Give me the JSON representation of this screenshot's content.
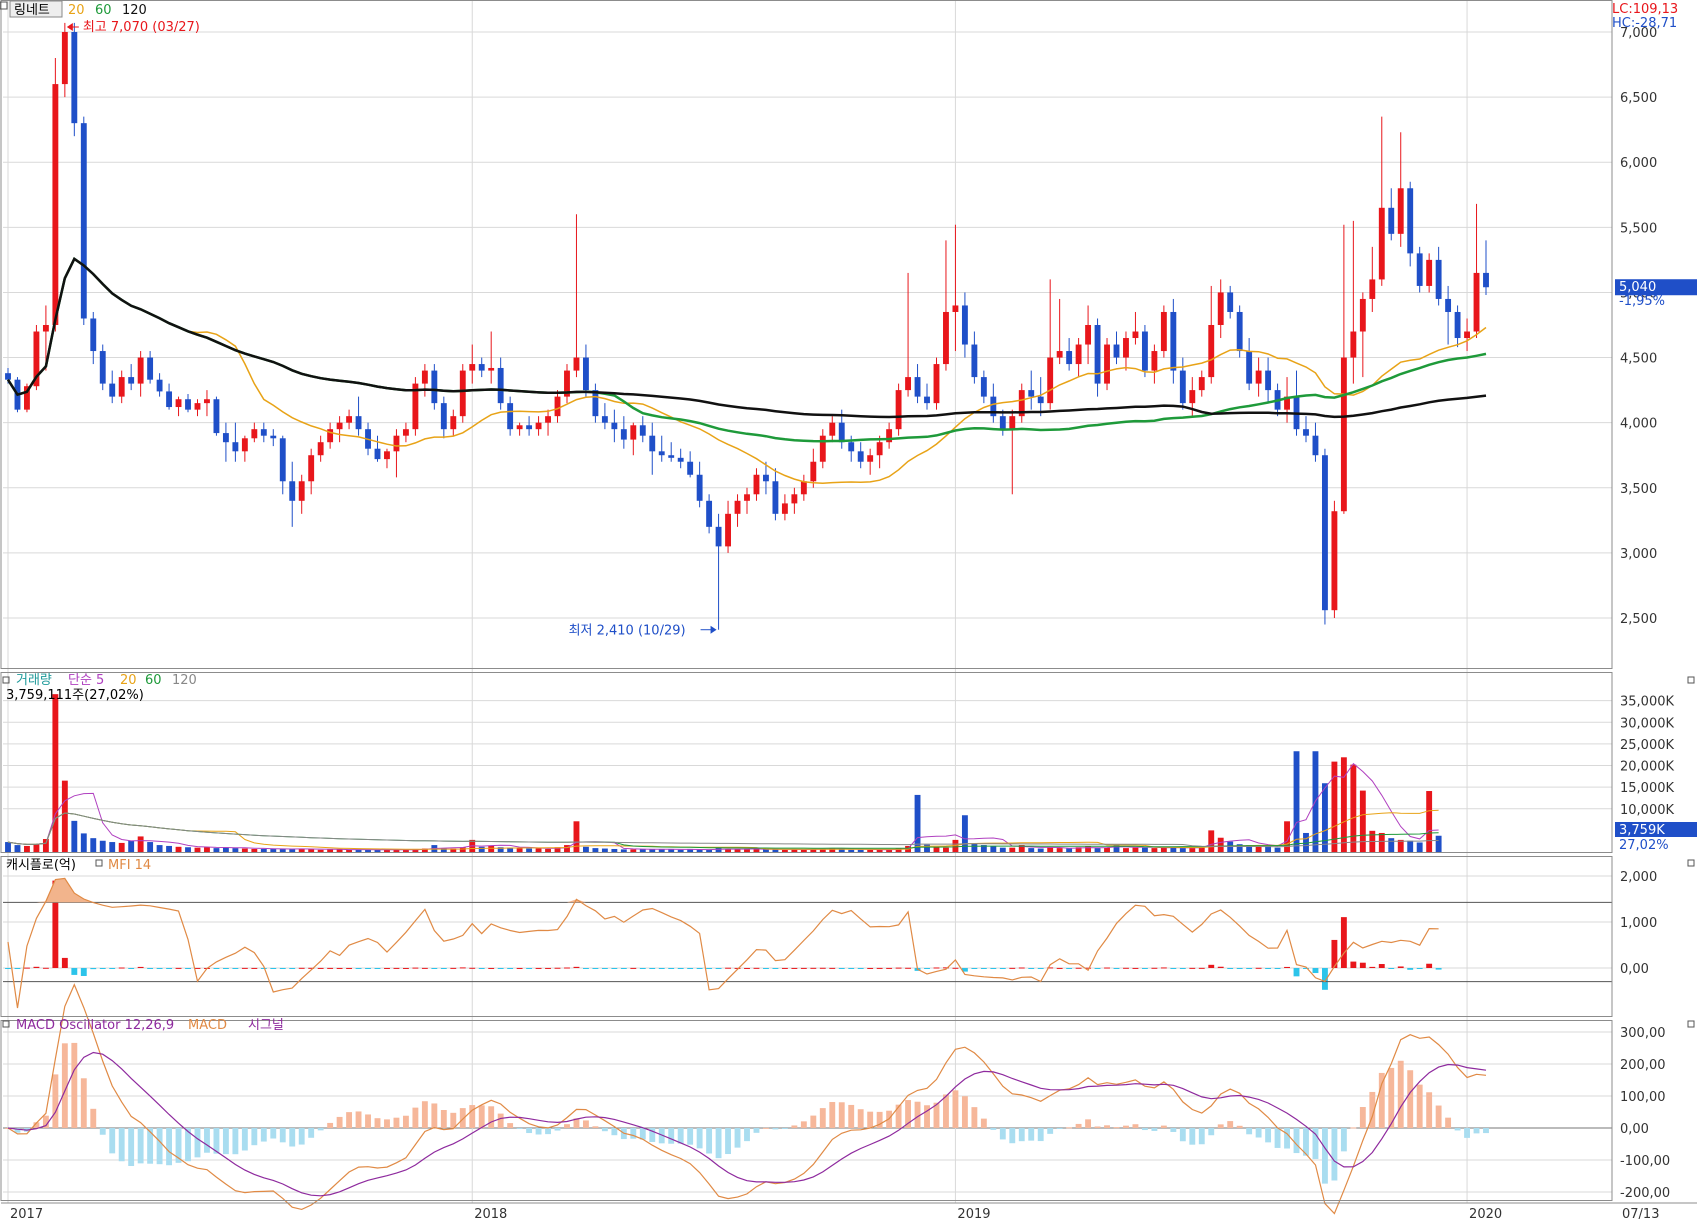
{
  "colors": {
    "up": "#e8161b",
    "down": "#1f4fc8",
    "ma20": "#e8a317",
    "ma60": "#1e9a3a",
    "ma120": "#111111",
    "grid": "#d9d9d9",
    "panelBorder": "#8c8c8c",
    "priceTag": "#1f4fc8",
    "mfi": "#e08a45",
    "mfiFill": "#f2b48c",
    "cashPos": "#e8161b",
    "cashNeg": "#2cc4ea",
    "macdLine": "#e08a45",
    "signalLine": "#8e2a9e",
    "oscPos": "#f6b79a",
    "oscNeg": "#a9ddf0",
    "volMa5": "#b040c0"
  },
  "main": {
    "legend": {
      "name": "링네트",
      "ma1": "20",
      "ma2": "60",
      "ma3": "120"
    },
    "topRight": {
      "lc": "LC:109,13",
      "hc": "HC:-28,71"
    },
    "high": "최고 7,070 (03/27)",
    "low": "최저 2,410 (10/29)",
    "lastPrice": "5,040",
    "lastChange": "-1,95%",
    "yTicks": [
      {
        "v": 2500,
        "label": "2,500"
      },
      {
        "v": 3000,
        "label": "3,000"
      },
      {
        "v": 3500,
        "label": "3,500"
      },
      {
        "v": 4000,
        "label": "4,000"
      },
      {
        "v": 4500,
        "label": "4,500"
      },
      {
        "v": 5000,
        "label": "5,000"
      },
      {
        "v": 5500,
        "label": "5,500"
      },
      {
        "v": 6000,
        "label": "6,000"
      },
      {
        "v": 6500,
        "label": "6,500"
      },
      {
        "v": 7000,
        "label": "7,000"
      }
    ]
  },
  "volume": {
    "legend": {
      "name": "거래량",
      "ma": "단순 5",
      "p2": "20",
      "p3": "60",
      "p4": "120"
    },
    "info": "3,759,111주(27,02%)",
    "tag": "3,759K",
    "tagPct": "27,02%",
    "yTicks": [
      {
        "v": 10000,
        "label": "10,000K"
      },
      {
        "v": 15000,
        "label": "15,000K"
      },
      {
        "v": 20000,
        "label": "20,000K"
      },
      {
        "v": 25000,
        "label": "25,000K"
      },
      {
        "v": 30000,
        "label": "30,000K"
      },
      {
        "v": 35000,
        "label": "35,000K"
      }
    ]
  },
  "cash": {
    "legend": {
      "name": "캐시플로(억)",
      "mfi": "MFI 14"
    },
    "yTicks": [
      {
        "v": 0,
        "label": "0,00"
      },
      {
        "v": 1000,
        "label": "1,000"
      },
      {
        "v": 2000,
        "label": "2,000"
      }
    ]
  },
  "macd": {
    "legend": {
      "name": "MACD Oscillator 12,26,9",
      "macd": "MACD",
      "signal": "시그널"
    },
    "yTicks": [
      {
        "v": -200,
        "label": "-200,00"
      },
      {
        "v": -100,
        "label": "-100,00"
      },
      {
        "v": 0,
        "label": "0,00"
      },
      {
        "v": 100,
        "label": "100,00"
      },
      {
        "v": 200,
        "label": "200,00"
      },
      {
        "v": 300,
        "label": "300,00"
      }
    ]
  },
  "xAxis": {
    "labels": [
      {
        "i": 0,
        "label": "2017"
      },
      {
        "i": 49,
        "label": "2018"
      },
      {
        "i": 100,
        "label": "2019"
      },
      {
        "i": 154,
        "label": "2020"
      }
    ],
    "last": "07/13"
  },
  "chart_data": {
    "type": "candlestick",
    "title": "링네트",
    "period": "weekly",
    "indicators": [
      "MA 20",
      "MA 60",
      "MA 120",
      "Volume",
      "Cash flow",
      "MFI 14",
      "MACD Oscillator 12,26,9"
    ],
    "candles": [
      [
        4380,
        4420,
        4300,
        4330
      ],
      [
        4330,
        4350,
        4080,
        4100
      ],
      [
        4100,
        4300,
        4080,
        4280
      ],
      [
        4280,
        4750,
        4250,
        4700
      ],
      [
        4700,
        4900,
        4400,
        4750
      ],
      [
        4750,
        6800,
        4700,
        6600
      ],
      [
        6600,
        7070,
        6500,
        7000
      ],
      [
        7000,
        7070,
        6200,
        6300
      ],
      [
        6300,
        6350,
        4750,
        4800
      ],
      [
        4800,
        4850,
        4450,
        4550
      ],
      [
        4550,
        4600,
        4250,
        4300
      ],
      [
        4300,
        4400,
        4150,
        4200
      ],
      [
        4200,
        4400,
        4150,
        4350
      ],
      [
        4350,
        4450,
        4250,
        4300
      ],
      [
        4300,
        4550,
        4200,
        4500
      ],
      [
        4500,
        4550,
        4300,
        4330
      ],
      [
        4330,
        4380,
        4200,
        4240
      ],
      [
        4240,
        4300,
        4100,
        4120
      ],
      [
        4120,
        4200,
        4050,
        4180
      ],
      [
        4180,
        4220,
        4080,
        4100
      ],
      [
        4100,
        4180,
        4050,
        4150
      ],
      [
        4150,
        4250,
        4050,
        4180
      ],
      [
        4180,
        4200,
        3900,
        3920
      ],
      [
        3920,
        4000,
        3700,
        3850
      ],
      [
        3850,
        4000,
        3700,
        3780
      ],
      [
        3780,
        3900,
        3700,
        3880
      ],
      [
        3880,
        4000,
        3850,
        3950
      ],
      [
        3950,
        4000,
        3850,
        3900
      ],
      [
        3900,
        3950,
        3820,
        3880
      ],
      [
        3880,
        3900,
        3450,
        3550
      ],
      [
        3550,
        3700,
        3200,
        3400
      ],
      [
        3400,
        3600,
        3300,
        3550
      ],
      [
        3550,
        3800,
        3450,
        3750
      ],
      [
        3750,
        3900,
        3700,
        3850
      ],
      [
        3850,
        4000,
        3800,
        3950
      ],
      [
        3950,
        4050,
        3850,
        4000
      ],
      [
        4000,
        4100,
        3950,
        4050
      ],
      [
        4050,
        4200,
        3900,
        3950
      ],
      [
        3950,
        4000,
        3750,
        3800
      ],
      [
        3800,
        3900,
        3700,
        3720
      ],
      [
        3720,
        3800,
        3650,
        3780
      ],
      [
        3780,
        3950,
        3580,
        3900
      ],
      [
        3900,
        4000,
        3850,
        3950
      ],
      [
        3950,
        4350,
        3900,
        4300
      ],
      [
        4300,
        4450,
        4200,
        4400
      ],
      [
        4400,
        4450,
        4100,
        4150
      ],
      [
        4150,
        4200,
        3880,
        3950
      ],
      [
        3950,
        4100,
        3900,
        4050
      ],
      [
        4050,
        4450,
        4000,
        4400
      ],
      [
        4400,
        4600,
        4300,
        4450
      ],
      [
        4450,
        4500,
        4350,
        4400
      ],
      [
        4400,
        4700,
        4300,
        4420
      ],
      [
        4420,
        4500,
        4100,
        4150
      ],
      [
        4150,
        4200,
        3900,
        3950
      ],
      [
        3950,
        4000,
        3900,
        3980
      ],
      [
        3980,
        4050,
        3900,
        3950
      ],
      [
        3950,
        4050,
        3900,
        4000
      ],
      [
        4000,
        4100,
        3900,
        4050
      ],
      [
        4050,
        4250,
        4000,
        4200
      ],
      [
        4200,
        4450,
        4150,
        4400
      ],
      [
        4400,
        5600,
        4350,
        4500
      ],
      [
        4500,
        4600,
        4200,
        4250
      ],
      [
        4250,
        4300,
        4000,
        4050
      ],
      [
        4050,
        4150,
        3950,
        4000
      ],
      [
        4000,
        4100,
        3850,
        3950
      ],
      [
        3950,
        4050,
        3800,
        3870
      ],
      [
        3870,
        4000,
        3750,
        3980
      ],
      [
        3980,
        4050,
        3850,
        3900
      ],
      [
        3900,
        4000,
        3600,
        3780
      ],
      [
        3780,
        3900,
        3700,
        3750
      ],
      [
        3750,
        3850,
        3700,
        3730
      ],
      [
        3730,
        3800,
        3650,
        3700
      ],
      [
        3700,
        3780,
        3580,
        3600
      ],
      [
        3600,
        3700,
        3350,
        3400
      ],
      [
        3400,
        3450,
        3150,
        3200
      ],
      [
        3200,
        3300,
        2410,
        3050
      ],
      [
        3050,
        3400,
        3000,
        3300
      ],
      [
        3300,
        3450,
        3200,
        3400
      ],
      [
        3400,
        3500,
        3300,
        3450
      ],
      [
        3450,
        3650,
        3400,
        3600
      ],
      [
        3600,
        3700,
        3450,
        3550
      ],
      [
        3550,
        3650,
        3250,
        3300
      ],
      [
        3300,
        3450,
        3250,
        3380
      ],
      [
        3380,
        3500,
        3300,
        3450
      ],
      [
        3450,
        3600,
        3400,
        3550
      ],
      [
        3550,
        3800,
        3500,
        3700
      ],
      [
        3700,
        3950,
        3650,
        3900
      ],
      [
        3900,
        4050,
        3850,
        4000
      ],
      [
        4000,
        4100,
        3800,
        3850
      ],
      [
        3850,
        3900,
        3700,
        3780
      ],
      [
        3780,
        3850,
        3650,
        3700
      ],
      [
        3700,
        3800,
        3600,
        3750
      ],
      [
        3750,
        3900,
        3650,
        3850
      ],
      [
        3850,
        4000,
        3800,
        3950
      ],
      [
        3950,
        4300,
        3900,
        4250
      ],
      [
        4250,
        5150,
        4200,
        4350
      ],
      [
        4350,
        4450,
        4150,
        4200
      ],
      [
        4200,
        4300,
        4100,
        4150
      ],
      [
        4150,
        4500,
        4100,
        4450
      ],
      [
        4450,
        5400,
        4400,
        4850
      ],
      [
        4850,
        5520,
        4550,
        4900
      ],
      [
        4900,
        5000,
        4500,
        4600
      ],
      [
        4600,
        4700,
        4300,
        4350
      ],
      [
        4350,
        4400,
        4150,
        4200
      ],
      [
        4200,
        4300,
        4000,
        4050
      ],
      [
        4050,
        4100,
        3900,
        3950
      ],
      [
        3950,
        4100,
        3450,
        4050
      ],
      [
        4050,
        4300,
        4000,
        4250
      ],
      [
        4250,
        4400,
        4100,
        4200
      ],
      [
        4200,
        4350,
        4050,
        4150
      ],
      [
        4150,
        5100,
        4100,
        4500
      ],
      [
        4500,
        4950,
        4450,
        4550
      ],
      [
        4550,
        4650,
        4400,
        4450
      ],
      [
        4450,
        4650,
        4350,
        4600
      ],
      [
        4600,
        4900,
        4450,
        4750
      ],
      [
        4750,
        4800,
        4200,
        4300
      ],
      [
        4300,
        4650,
        4250,
        4600
      ],
      [
        4600,
        4700,
        4450,
        4500
      ],
      [
        4500,
        4700,
        4400,
        4650
      ],
      [
        4650,
        4850,
        4600,
        4700
      ],
      [
        4700,
        4750,
        4350,
        4400
      ],
      [
        4400,
        4600,
        4300,
        4550
      ],
      [
        4550,
        4900,
        4500,
        4850
      ],
      [
        4850,
        4950,
        4300,
        4400
      ],
      [
        4400,
        4500,
        4100,
        4150
      ],
      [
        4150,
        4350,
        4050,
        4250
      ],
      [
        4250,
        4400,
        4200,
        4350
      ],
      [
        4350,
        5050,
        4300,
        4750
      ],
      [
        4750,
        5100,
        4650,
        5000
      ],
      [
        5000,
        5050,
        4800,
        4850
      ],
      [
        4850,
        4900,
        4500,
        4550
      ],
      [
        4550,
        4650,
        4250,
        4300
      ],
      [
        4300,
        4500,
        4200,
        4400
      ],
      [
        4400,
        4500,
        4150,
        4250
      ],
      [
        4250,
        4300,
        4050,
        4100
      ],
      [
        4100,
        4350,
        4000,
        4200
      ],
      [
        4200,
        4400,
        3900,
        3950
      ],
      [
        3950,
        4050,
        3850,
        3900
      ],
      [
        3900,
        4000,
        3700,
        3750
      ],
      [
        3750,
        3800,
        2450,
        2560
      ],
      [
        2560,
        3400,
        2500,
        3320
      ],
      [
        3320,
        5520,
        3300,
        4500
      ],
      [
        4500,
        5550,
        4300,
        4700
      ],
      [
        4700,
        5000,
        4350,
        4950
      ],
      [
        4950,
        5350,
        4850,
        5100
      ],
      [
        5100,
        6350,
        5050,
        5650
      ],
      [
        5650,
        5800,
        5400,
        5450
      ],
      [
        5450,
        6230,
        5350,
        5800
      ],
      [
        5800,
        5850,
        5200,
        5300
      ],
      [
        5300,
        5350,
        5000,
        5050
      ],
      [
        5050,
        5300,
        5000,
        5250
      ],
      [
        5250,
        5350,
        4900,
        4950
      ],
      [
        4950,
        5050,
        4600,
        4850
      ],
      [
        4850,
        4900,
        4580,
        4650
      ],
      [
        4650,
        4800,
        4550,
        4700
      ],
      [
        4700,
        5680,
        4650,
        5150
      ],
      [
        5150,
        5400,
        4980,
        5040
      ]
    ],
    "volume_k": [
      2300,
      1600,
      1400,
      1800,
      3000,
      36500,
      16500,
      7200,
      4300,
      3200,
      2600,
      2300,
      2100,
      2600,
      3600,
      2300,
      1600,
      1400,
      1200,
      1100,
      1000,
      1100,
      900,
      1100,
      900,
      800,
      700,
      700,
      700,
      700,
      700,
      800,
      600,
      500,
      600,
      600,
      500,
      600,
      500,
      500,
      500,
      500,
      500,
      700,
      800,
      1600,
      900,
      800,
      1100,
      2800,
      1200,
      1500,
      1100,
      1000,
      900,
      800,
      800,
      700,
      1100,
      1600,
      7100,
      1200,
      900,
      800,
      700,
      600,
      600,
      700,
      600,
      600,
      600,
      500,
      700,
      500,
      500,
      1000,
      700,
      600,
      600,
      700,
      600,
      600,
      500,
      600,
      600,
      700,
      700,
      800,
      700,
      500,
      500,
      500,
      600,
      600,
      800,
      1400,
      13200,
      1700,
      1100,
      1000,
      2800,
      8500,
      2000,
      1600,
      1300,
      1000,
      1000,
      1600,
      900,
      800,
      1000,
      900,
      800,
      1100,
      1300,
      900,
      1000,
      1800,
      900,
      1000,
      1000,
      900,
      1200,
      1000,
      900,
      900,
      1000,
      5000,
      3300,
      2400,
      1800,
      1600,
      1300,
      1500,
      1000,
      7100,
      23300,
      4400,
      23300,
      15900,
      20900,
      21900,
      20200,
      14200,
      4900,
      4400,
      3200,
      2800,
      2600,
      2200,
      14100,
      3759
    ]
  }
}
